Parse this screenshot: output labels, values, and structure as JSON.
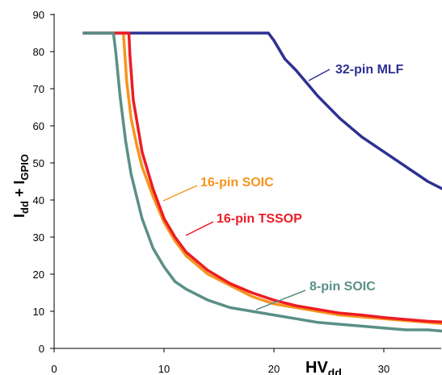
{
  "chart_data": {
    "type": "line",
    "xlabel": "HV",
    "xlabel_sub": "dd",
    "ylabel_parts": [
      "I",
      "dd",
      " + I",
      "GPIO"
    ],
    "xlim": [
      0,
      36
    ],
    "ylim": [
      0,
      90
    ],
    "xticks": [
      0,
      10,
      20,
      30
    ],
    "yticks": [
      0,
      10,
      20,
      30,
      40,
      50,
      60,
      70,
      80,
      90
    ],
    "grid": false,
    "series": [
      {
        "name": "32-pin MLF",
        "color": "#2e3192",
        "x": [
          2.6,
          19.5,
          20,
          21,
          22,
          24,
          26,
          28,
          30,
          32,
          34,
          36
        ],
        "y": [
          85,
          85,
          83,
          78,
          75,
          68,
          62,
          57,
          53,
          49,
          45,
          42
        ]
      },
      {
        "name": "16-pin SOIC",
        "color": "#f7941d",
        "x": [
          6.3,
          6.3,
          6.6,
          7,
          7.5,
          8,
          9,
          10,
          11,
          12,
          14,
          16,
          18,
          20,
          22,
          24,
          26,
          28,
          30,
          32,
          34,
          36
        ],
        "y": [
          85,
          85,
          72,
          62,
          55,
          49,
          41,
          34,
          29,
          25,
          20,
          17,
          14,
          12,
          11,
          10,
          9,
          8.5,
          8,
          7.5,
          7,
          6.5
        ]
      },
      {
        "name": "16-pin TSSOP",
        "color": "#ed1c24",
        "x": [
          2.6,
          6.8,
          6.9,
          7.2,
          7.6,
          8,
          9,
          10,
          11,
          12,
          14,
          16,
          18,
          20,
          22,
          24,
          26,
          28,
          30,
          32,
          34,
          36
        ],
        "y": [
          85,
          85,
          79,
          67,
          60,
          53,
          43,
          35,
          30,
          26,
          21,
          17.5,
          15,
          13,
          11.5,
          10.5,
          9.5,
          9,
          8.3,
          7.8,
          7.3,
          7
        ]
      },
      {
        "name": "8-pin SOIC",
        "color": "#5a8f87",
        "x": [
          2.6,
          5.4,
          5.6,
          6,
          6.5,
          7,
          8,
          9,
          10,
          11,
          12,
          14,
          16,
          18,
          20,
          22,
          24,
          26,
          28,
          30,
          32,
          34,
          36
        ],
        "y": [
          85,
          85,
          80,
          68,
          56,
          47,
          35,
          27,
          22,
          18,
          16,
          13,
          11,
          10,
          9,
          8,
          7,
          6.5,
          6,
          5.5,
          5,
          5,
          4.5
        ]
      }
    ],
    "annotations": [
      {
        "series": 0,
        "text": "32-pin MLF"
      },
      {
        "series": 1,
        "text": "16-pin SOIC"
      },
      {
        "series": 2,
        "text": "16-pin TSSOP"
      },
      {
        "series": 3,
        "text": "8-pin SOIC"
      }
    ]
  }
}
